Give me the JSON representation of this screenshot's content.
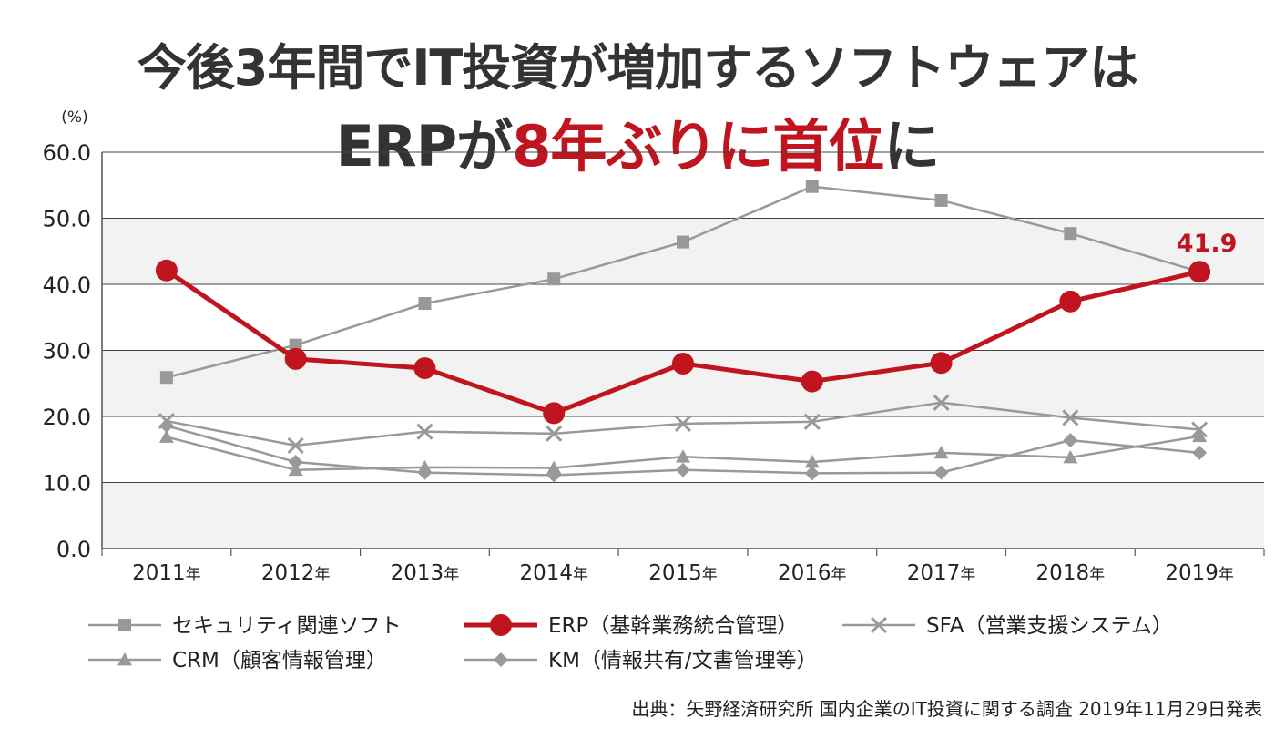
{
  "title": {
    "line1": "今後3年間でIT投資が増加するソフトウェアは",
    "line2_part1": "ERPが",
    "line2_accent": "8年ぶりに首位",
    "line2_part2": "に"
  },
  "source_note": "出典：矢野経済研究所 国内企業のIT投資に関する調査 2019年11月29日発表",
  "colors": {
    "accent": "#c0141e",
    "gray_series": "#999999",
    "band": "#f2f2f2",
    "title": "#333333"
  },
  "chart_data": {
    "type": "line",
    "y_unit_label": "(%)",
    "ylim": [
      0,
      60
    ],
    "yticks": [
      "0.0",
      "10.0",
      "20.0",
      "30.0",
      "40.0",
      "50.0",
      "60.0"
    ],
    "categories": [
      "2011",
      "2012",
      "2013",
      "2014",
      "2015",
      "2016",
      "2017",
      "2018",
      "2019"
    ],
    "category_suffix": "年",
    "grid": "horizontal",
    "legend_position": "bottom",
    "series": [
      {
        "name": "セキュリティ関連ソフト",
        "marker": "square",
        "color": "#999999",
        "values": [
          25.9,
          30.8,
          37.1,
          40.8,
          46.4,
          54.8,
          52.7,
          47.7,
          41.9
        ]
      },
      {
        "name": "ERP（基幹業務統合管理）",
        "marker": "circle",
        "color": "#c0141e",
        "highlight": true,
        "values": [
          42.1,
          28.7,
          27.3,
          20.5,
          28.0,
          25.3,
          28.1,
          37.4,
          41.9
        ]
      },
      {
        "name": "SFA（営業支援システム）",
        "marker": "x",
        "color": "#999999",
        "values": [
          19.3,
          15.6,
          17.7,
          17.4,
          18.9,
          19.2,
          22.1,
          19.8,
          18.0
        ]
      },
      {
        "name": "CRM（顧客情報管理）",
        "marker": "triangle",
        "color": "#999999",
        "values": [
          16.9,
          11.9,
          12.3,
          12.2,
          13.9,
          13.1,
          14.5,
          13.8,
          17.0
        ]
      },
      {
        "name": "KM（情報共有/文書管理等）",
        "marker": "diamond",
        "color": "#999999",
        "values": [
          18.6,
          13.1,
          11.5,
          11.1,
          11.9,
          11.4,
          11.5,
          16.4,
          14.5
        ]
      }
    ],
    "annotations": [
      {
        "series": "ERP（基幹業務統合管理）",
        "category": "2019",
        "text": "41.9"
      }
    ]
  }
}
